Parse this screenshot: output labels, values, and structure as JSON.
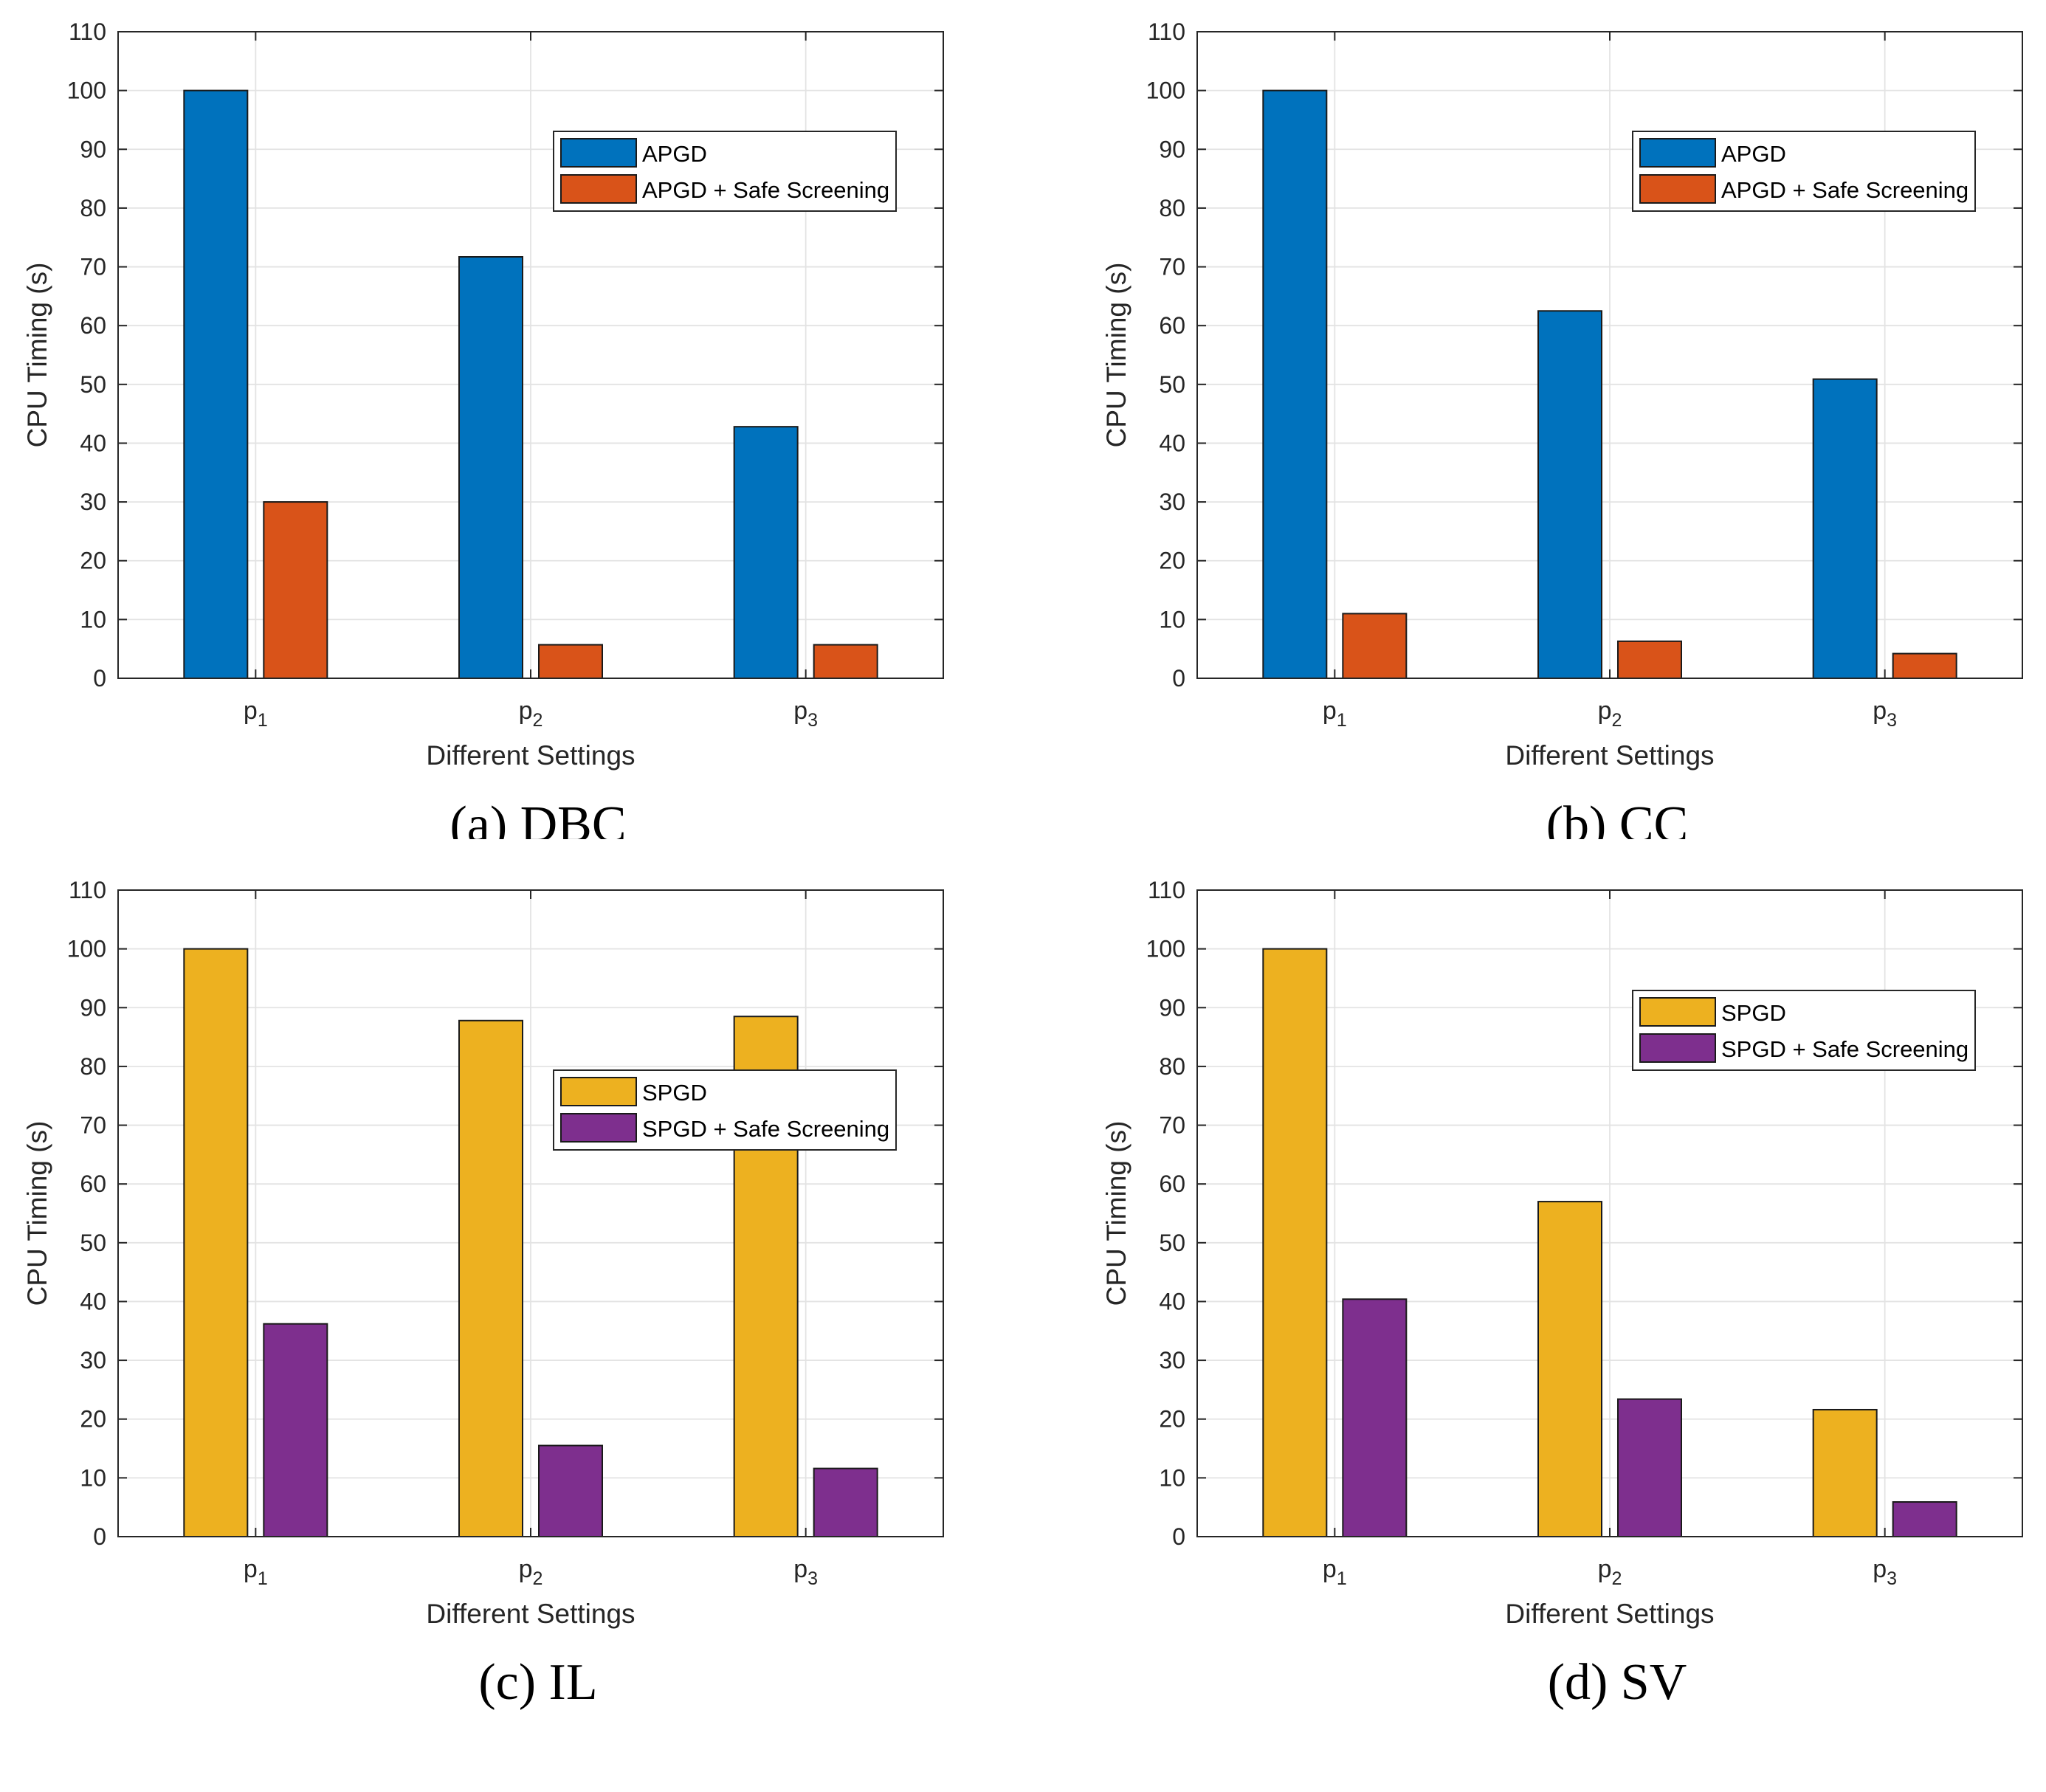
{
  "chart_data": [
    {
      "type": "bar",
      "title": "",
      "caption": "(a) DBC",
      "xlabel": "Different Settings",
      "ylabel": "CPU Timing (s)",
      "categories": [
        {
          "base": "p",
          "sub": "1"
        },
        {
          "base": "p",
          "sub": "2"
        },
        {
          "base": "p",
          "sub": "3"
        }
      ],
      "ylim": [
        0,
        110
      ],
      "yticks": [
        0,
        10,
        20,
        30,
        40,
        50,
        60,
        70,
        80,
        90,
        100,
        110
      ],
      "grid": true,
      "legend_position": "upper-right",
      "series": [
        {
          "name": "APGD",
          "color": "#0072BD",
          "values": [
            100,
            71.7,
            42.8
          ]
        },
        {
          "name": "APGD + Safe Screening",
          "color": "#D95319",
          "values": [
            30,
            5.7,
            5.7
          ]
        }
      ]
    },
    {
      "type": "bar",
      "title": "",
      "caption": "(b) CC",
      "xlabel": "Different Settings",
      "ylabel": "CPU Timing (s)",
      "categories": [
        {
          "base": "p",
          "sub": "1"
        },
        {
          "base": "p",
          "sub": "2"
        },
        {
          "base": "p",
          "sub": "3"
        }
      ],
      "ylim": [
        0,
        110
      ],
      "yticks": [
        0,
        10,
        20,
        30,
        40,
        50,
        60,
        70,
        80,
        90,
        100,
        110
      ],
      "grid": true,
      "legend_position": "upper-right",
      "series": [
        {
          "name": "APGD",
          "color": "#0072BD",
          "values": [
            100,
            62.5,
            50.9
          ]
        },
        {
          "name": "APGD + Safe Screening",
          "color": "#D95319",
          "values": [
            11,
            6.3,
            4.2
          ]
        }
      ]
    },
    {
      "type": "bar",
      "title": "",
      "caption": "(c) IL",
      "xlabel": "Different Settings",
      "ylabel": "CPU Timing (s)",
      "categories": [
        {
          "base": "p",
          "sub": "1"
        },
        {
          "base": "p",
          "sub": "2"
        },
        {
          "base": "p",
          "sub": "3"
        }
      ],
      "ylim": [
        0,
        110
      ],
      "yticks": [
        0,
        10,
        20,
        30,
        40,
        50,
        60,
        70,
        80,
        90,
        100,
        110
      ],
      "grid": true,
      "legend_position": "middle-right",
      "series": [
        {
          "name": "SPGD",
          "color": "#EDB120",
          "values": [
            100,
            87.8,
            88.5
          ]
        },
        {
          "name": "SPGD + Safe Screening",
          "color": "#7E2F8E",
          "values": [
            36.2,
            15.5,
            11.6
          ]
        }
      ]
    },
    {
      "type": "bar",
      "title": "",
      "caption": "(d) SV",
      "xlabel": "Different Settings",
      "ylabel": "CPU Timing (s)",
      "categories": [
        {
          "base": "p",
          "sub": "1"
        },
        {
          "base": "p",
          "sub": "2"
        },
        {
          "base": "p",
          "sub": "3"
        }
      ],
      "ylim": [
        0,
        110
      ],
      "yticks": [
        0,
        10,
        20,
        30,
        40,
        50,
        60,
        70,
        80,
        90,
        100,
        110
      ],
      "grid": true,
      "legend_position": "upper-right",
      "series": [
        {
          "name": "SPGD",
          "color": "#EDB120",
          "values": [
            100,
            57,
            21.6
          ]
        },
        {
          "name": "SPGD + Safe Screening",
          "color": "#7E2F8E",
          "values": [
            40.4,
            23.4,
            5.9
          ]
        }
      ]
    }
  ]
}
